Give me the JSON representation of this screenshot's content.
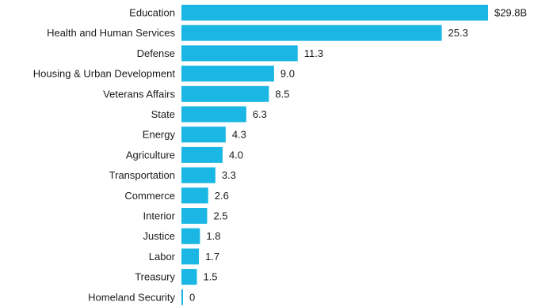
{
  "chart_data": {
    "type": "bar",
    "orientation": "horizontal",
    "title": "",
    "xlabel": "",
    "ylabel": "",
    "bar_color": "#1ab6e4",
    "categories": [
      "Education",
      "Health and Human Services",
      "Defense",
      "Housing & Urban Development",
      "Veterans Affairs",
      "State",
      "Energy",
      "Agriculture",
      "Transportation",
      "Commerce",
      "Interior",
      "Justice",
      "Labor",
      "Treasury",
      "Homeland Security"
    ],
    "values": [
      29.8,
      25.3,
      11.3,
      9.0,
      8.5,
      6.3,
      4.3,
      4.0,
      3.3,
      2.6,
      2.5,
      1.8,
      1.7,
      1.5,
      0
    ],
    "value_labels": [
      "$29.8B",
      "25.3",
      "11.3",
      "9.0",
      "8.5",
      "6.3",
      "4.3",
      "4.0",
      "3.3",
      "2.6",
      "2.5",
      "1.8",
      "1.7",
      "1.5",
      "0"
    ],
    "xlim": [
      0,
      29.8
    ],
    "grid": false,
    "legend": "none"
  }
}
